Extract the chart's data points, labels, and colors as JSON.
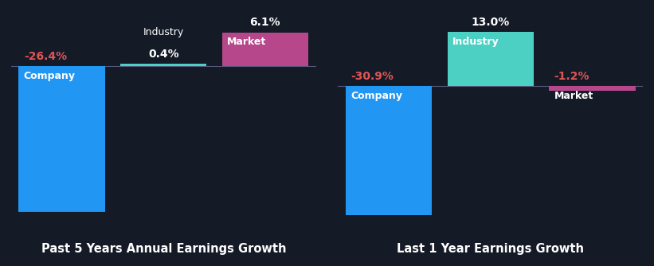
{
  "bg_color": "#151a27",
  "chart1": {
    "title": "Past 5 Years Annual Earnings Growth",
    "bars": [
      {
        "label": "Company",
        "value": -26.4,
        "color": "#2196f3",
        "x": 0
      },
      {
        "label": "Industry",
        "value": 0.4,
        "color": "#4dd0c4",
        "x": 1
      },
      {
        "label": "Market",
        "value": 6.1,
        "color": "#b5478a",
        "x": 2
      }
    ],
    "ylim_min": -30,
    "ylim_max": 10
  },
  "chart2": {
    "title": "Last 1 Year Earnings Growth",
    "bars": [
      {
        "label": "Company",
        "value": -30.9,
        "color": "#2196f3",
        "x": 0
      },
      {
        "label": "Industry",
        "value": 13.0,
        "color": "#4dd0c4",
        "x": 1
      },
      {
        "label": "Market",
        "value": -1.2,
        "color": "#b5478a",
        "x": 2
      }
    ],
    "ylim_min": -35,
    "ylim_max": 18
  },
  "text_color": "#ffffff",
  "negative_label_color": "#e05555",
  "bar_width": 0.85,
  "label_fontsize": 9,
  "value_fontsize": 10,
  "title_fontsize": 10.5,
  "zeroline_color": "#555577"
}
